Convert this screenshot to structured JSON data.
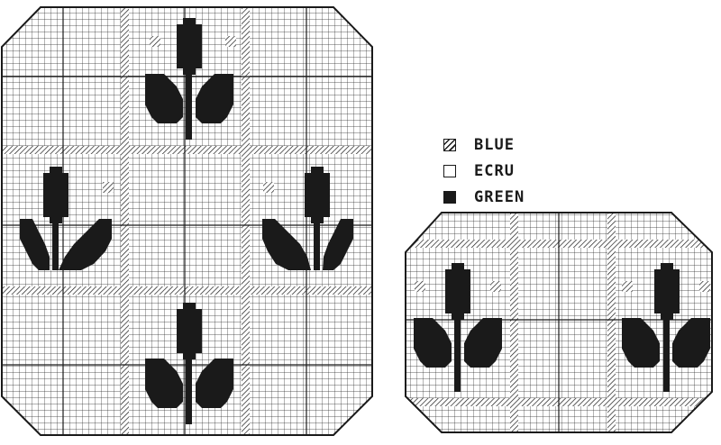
{
  "legend": {
    "items": [
      {
        "key": "blue",
        "label": "BLUE",
        "symbol": "hatched-square"
      },
      {
        "key": "ecru",
        "label": "ECRU",
        "symbol": "empty-square"
      },
      {
        "key": "green",
        "label": "GREEN",
        "symbol": "filled-square"
      }
    ]
  },
  "colors": {
    "ink": "#1a1a1a",
    "paper": "#ffffff"
  },
  "charts": [
    {
      "name": "large-square-chart",
      "motifs": [
        "tulip-top",
        "tulip-left",
        "tulip-right",
        "tulip-bottom"
      ]
    },
    {
      "name": "small-oblong-chart",
      "motifs": [
        "tulip-left",
        "tulip-right"
      ]
    }
  ]
}
